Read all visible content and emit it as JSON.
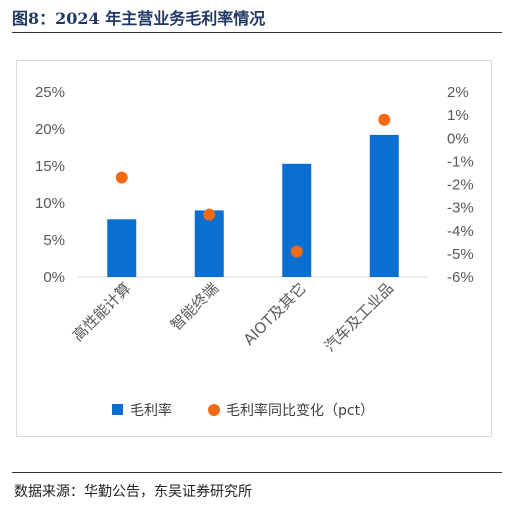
{
  "figure": {
    "title": "图8：2024 年主营业务毛利率情况",
    "source": "数据来源：华勤公告，东吴证券研究所"
  },
  "colors": {
    "bar": "#0a6fd0",
    "dot": "#f26a16",
    "axis": "#d9d9d9",
    "title": "#1f3864"
  },
  "chart_data": {
    "type": "bar",
    "categories": [
      "高性能计算",
      "智能终端",
      "AIOT及其它",
      "汽车及工业品"
    ],
    "series": [
      {
        "name": "毛利率",
        "type": "bar",
        "axis": "left",
        "values": [
          7.8,
          9.0,
          15.3,
          19.2
        ]
      },
      {
        "name": "毛利率同比变化（pct）",
        "type": "scatter",
        "axis": "right",
        "values": [
          -1.7,
          -3.3,
          -4.9,
          0.8
        ]
      }
    ],
    "ylim_left": [
      0,
      25
    ],
    "ylim_right": [
      -6,
      2
    ],
    "yticks_left": [
      "25%",
      "20%",
      "15%",
      "10%",
      "5%",
      "0%"
    ],
    "yticks_right": [
      "2%",
      "1%",
      "0%",
      "-1%",
      "-2%",
      "-3%",
      "-4%",
      "-5%",
      "-6%"
    ],
    "legend_position": "bottom",
    "grid": false
  }
}
